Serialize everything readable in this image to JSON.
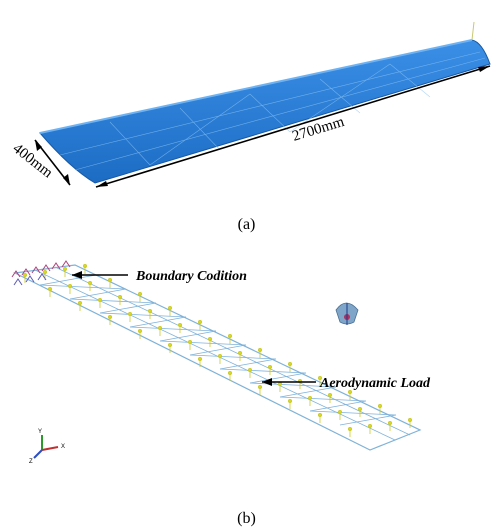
{
  "figure_a": {
    "label": "(a)",
    "dim_length": "2700mm",
    "dim_width": "400mm",
    "wing_color": "#2a7fd8"
  },
  "figure_b": {
    "label": "(b)",
    "callout_boundary": "Boundary Codition",
    "callout_load": "Aerodynamic Load",
    "mesh_color": "#7fb2d9",
    "load_color": "#d8d820",
    "constraint_color": "#b0407a",
    "axis_labels": [
      "Y",
      "X",
      "Z"
    ]
  }
}
